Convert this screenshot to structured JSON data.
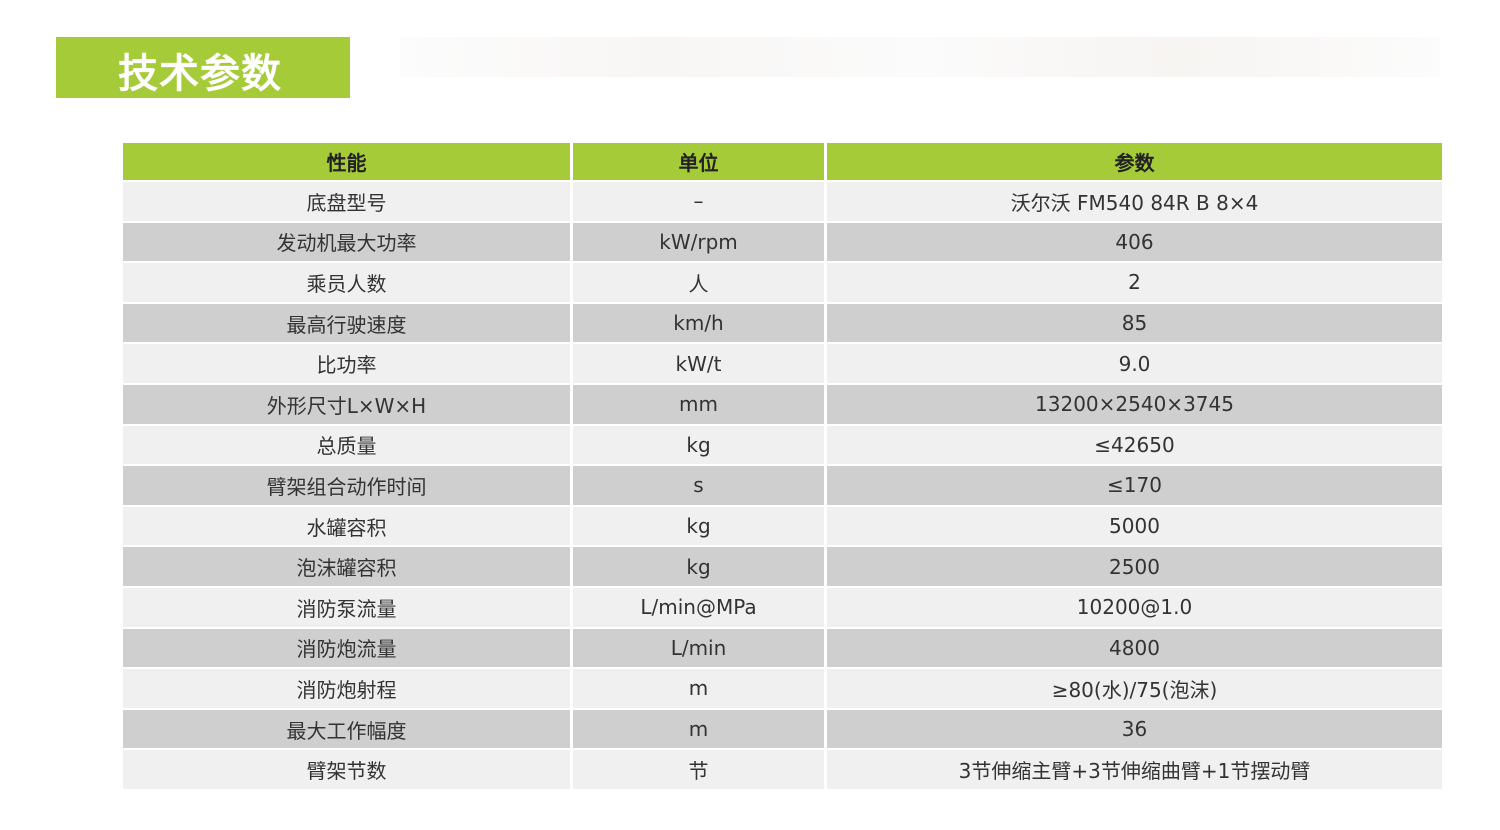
{
  "title": "技术参数",
  "colors": {
    "accent": "#a5cb38",
    "row_light": "#f0f0f0",
    "row_dark": "#cfcfcf"
  },
  "table": {
    "headers": [
      "性能",
      "单位",
      "参数"
    ],
    "rows": [
      [
        "底盘型号",
        "–",
        "沃尔沃  FM540 84R B 8×4"
      ],
      [
        "发动机最大功率",
        "kW/rpm",
        "406"
      ],
      [
        "乘员人数",
        "人",
        "2"
      ],
      [
        "最高行驶速度",
        "km/h",
        "85"
      ],
      [
        "比功率",
        "kW/t",
        "9.0"
      ],
      [
        "外形尺寸L×W×H",
        "mm",
        "13200×2540×3745"
      ],
      [
        "总质量",
        "kg",
        "≤42650"
      ],
      [
        "臂架组合动作时间",
        "s",
        "≤170"
      ],
      [
        "水罐容积",
        "kg",
        "5000"
      ],
      [
        "泡沫罐容积",
        "kg",
        "2500"
      ],
      [
        "消防泵流量",
        "L/min@MPa",
        "10200@1.0"
      ],
      [
        "消防炮流量",
        "L/min",
        "4800"
      ],
      [
        "消防炮射程",
        "m",
        "≥80(水)/75(泡沫)"
      ],
      [
        "最大工作幅度",
        "m",
        "36"
      ],
      [
        "臂架节数",
        "节",
        "3节伸缩主臂+3节伸缩曲臂+1节摆动臂"
      ]
    ]
  }
}
